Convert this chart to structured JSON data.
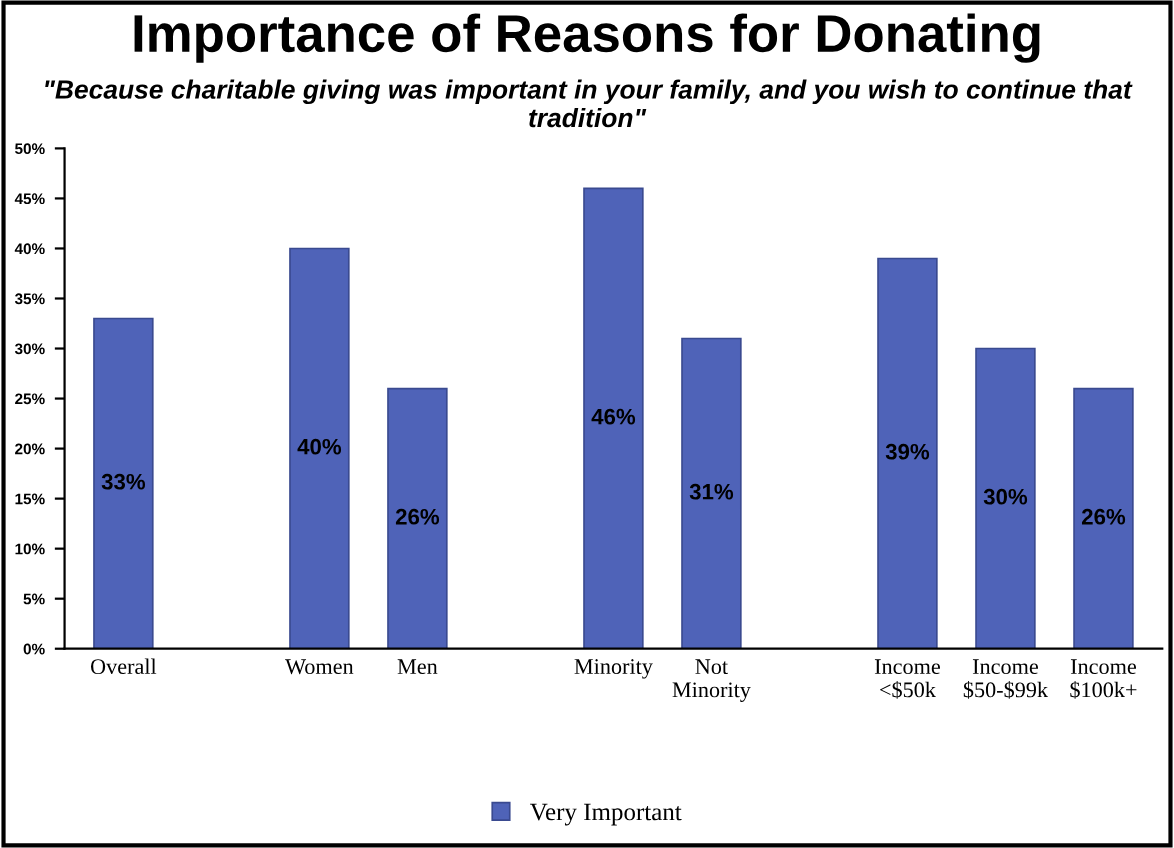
{
  "chart_data": {
    "type": "bar",
    "title": "Importance of Reasons for Donating",
    "subtitle": "\"Because charitable giving was important in your family, and you wish to continue that tradition\"",
    "categories": [
      "Overall",
      null,
      "Women",
      "Men",
      null,
      "Minority",
      "Not\nMinority",
      null,
      "Income\n<$50k",
      "Income\n$50-$99k",
      "Income\n$100k+"
    ],
    "series": [
      {
        "name": "Very Important",
        "color": "#4f63b8",
        "values": [
          33,
          null,
          40,
          26,
          null,
          46,
          31,
          null,
          39,
          30,
          26
        ],
        "value_labels": [
          "33%",
          null,
          "40%",
          "26%",
          null,
          "46%",
          "31%",
          null,
          "39%",
          "30%",
          "26%"
        ]
      }
    ],
    "ylim": [
      0,
      50
    ],
    "yticks": [
      {
        "value": 0,
        "label": "0%"
      },
      {
        "value": 5,
        "label": "5%"
      },
      {
        "value": 10,
        "label": "10%"
      },
      {
        "value": 15,
        "label": "15%"
      },
      {
        "value": 20,
        "label": "20%"
      },
      {
        "value": 25,
        "label": "25%"
      },
      {
        "value": 30,
        "label": "30%"
      },
      {
        "value": 35,
        "label": "35%"
      },
      {
        "value": 40,
        "label": "40%"
      },
      {
        "value": 45,
        "label": "45%"
      },
      {
        "value": 50,
        "label": "50%"
      }
    ],
    "grid": false,
    "legend": "bottom"
  }
}
